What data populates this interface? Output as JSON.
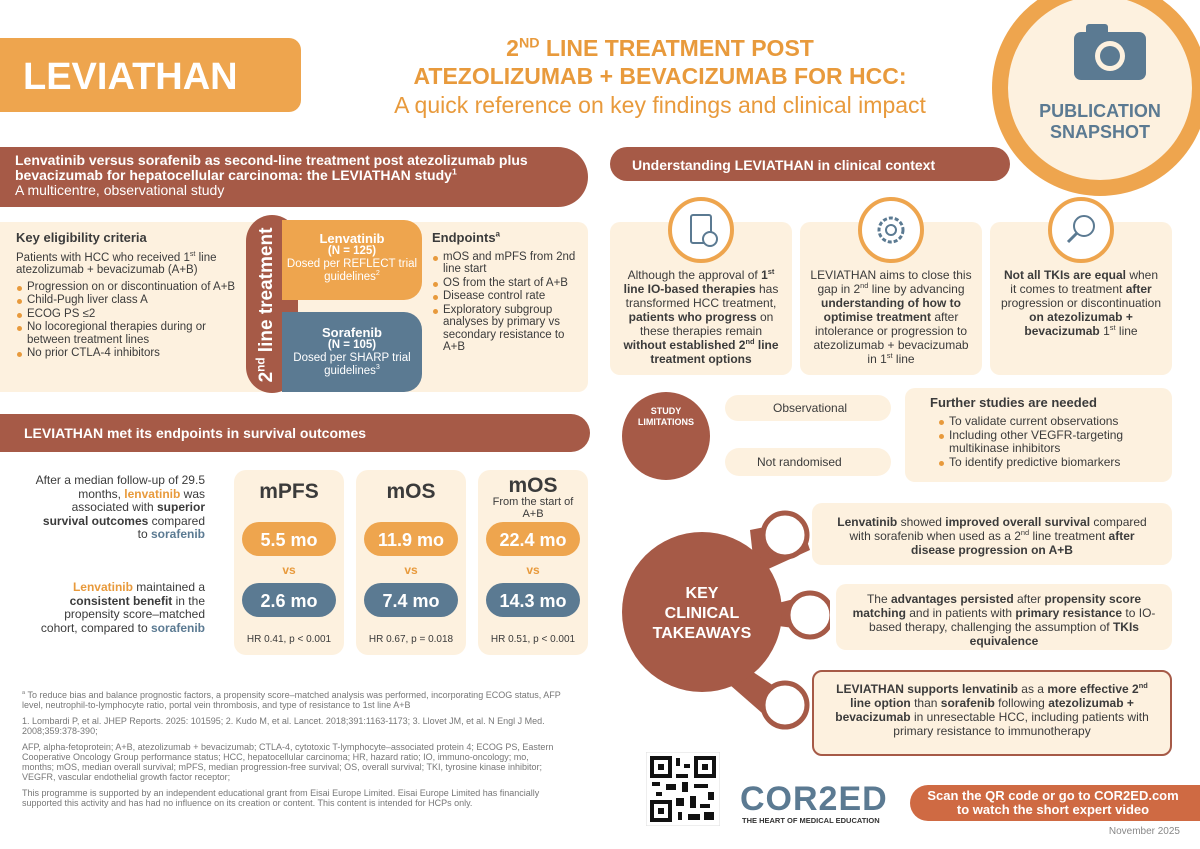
{
  "header": {
    "badge": "LEVIATHAN",
    "title": [
      "2",
      "ND",
      " LINE TREATMENT POST",
      "ATEZOLIZUMAB + BEVACIZUMAB FOR HCC:"
    ],
    "subtitle": "A quick reference on key findings and clinical impact",
    "snapshot": [
      "PUBLICATION",
      "SNAPSHOT"
    ]
  },
  "study": {
    "heading": [
      "Lenvatinib versus sorafenib as second-line treatment post atezolizumab plus bevacizumab for hepatocellular carcinoma: the LEVIATHAN study",
      "1"
    ],
    "subheading": "A multicentre, observational study"
  },
  "eligibility": {
    "title": "Key eligibility criteria",
    "intro": [
      "Patients with HCC who received 1",
      "st",
      " line atezolizumab + bevacizumab (A+B)"
    ],
    "items": [
      "Progression on or discontinuation of A+B",
      "Child-Pugh liver class A",
      "ECOG PS ≤2",
      "No locoregional therapies during or between treatment lines",
      "No prior CTLA-4 inhibitors"
    ]
  },
  "arms": {
    "label": [
      "2",
      "nd",
      " line treatment"
    ],
    "groups": [
      {
        "name": "Lenvatinib",
        "n": "(N = 125)",
        "dosing": [
          "Dosed per REFLECT trial guidelines",
          "2"
        ]
      },
      {
        "name": "Sorafenib",
        "n": "(N = 105)",
        "dosing": [
          "Dosed per SHARP trial guidelines",
          "3"
        ]
      }
    ]
  },
  "endpoints": {
    "title": [
      "Endpoints",
      "a"
    ],
    "items": [
      "mOS and mPFS from 2nd line start",
      "OS from the start of A+B",
      "Disease control rate",
      "Exploratory subgroup analyses by primary vs secondary resistance to A+B"
    ]
  },
  "outcomes": {
    "heading": "LEVIATHAN met its endpoints in survival outcomes",
    "text1": [
      "After a median follow-up of 29.5 months, ",
      "lenvatinib",
      " was associated with ",
      "superior survival outcomes",
      " compared to ",
      "sorafenib"
    ],
    "text2": [
      "Lenvatinib",
      " maintained a ",
      "consistent benefit",
      " in the propensity score–matched cohort, compared to ",
      "sorafenib"
    ],
    "columns": [
      {
        "title": "mPFS",
        "lenvatinib": "5.5 mo",
        "vs": "vs",
        "sorafenib": "2.6 mo",
        "hr": "HR 0.41, p < 0.001"
      },
      {
        "title": "mOS",
        "lenvatinib": "11.9 mo",
        "vs": "vs",
        "sorafenib": "7.4 mo",
        "hr": "HR 0.67, p = 0.018"
      },
      {
        "title": "mOS",
        "subtitle": "From the start of A+B",
        "lenvatinib": "22.4 mo",
        "vs": "vs",
        "sorafenib": "14.3 mo",
        "hr": "HR 0.51, p < 0.001"
      }
    ]
  },
  "footnotes": [
    [
      "a",
      " To reduce bias and balance prognostic factors, a propensity score–matched analysis was performed, incorporating ECOG status, AFP level, neutrophil-to-lymphocyte ratio, portal vein thrombosis, and type of resistance to 1st line A+B"
    ],
    "1. Lombardi P, et al. JHEP Reports. 2025: 101595; 2. Kudo M, et al. Lancet. 2018;391:1163-1173; 3. Llovet JM, et al. N Engl J Med. 2008;359:378-390;",
    "AFP, alpha-fetoprotein; A+B, atezolizumab + bevacizumab; CTLA-4, cytotoxic T-lymphocyte–associated protein 4; ECOG PS, Eastern Cooperative Oncology Group performance status; HCC, hepatocellular carcinoma; HR, hazard ratio; IO, immuno-oncology; mo, months; mOS, median overall survival; mPFS, median progression-free survival; OS, overall survival; TKI, tyrosine kinase inhibitor; VEGFR, vascular endothelial growth factor receptor;",
    "This programme is supported by an independent educational grant from Eisai Europe Limited. Eisai Europe Limited has financially supported this activity and has had no influence on its creation or content. This content is intended for HCPs only."
  ],
  "context": {
    "heading": "Understanding LEVIATHAN in clinical context",
    "cards": [
      [
        "Although the approval of ",
        "1",
        "st",
        " line IO-based therapies",
        " has transformed HCC treatment, ",
        "patients who progress",
        " on these therapies remain ",
        "without established 2",
        "nd",
        " line treatment options"
      ],
      [
        "LEVIATHAN aims to close this gap in 2",
        "nd",
        " line by advancing ",
        "understanding of how to optimise treatment",
        " after intolerance or progression to atezolizumab + bevacizumab in 1",
        "st",
        " line"
      ],
      [
        "Not all TKIs are equal",
        " when it comes to treatment ",
        "after",
        " progression or discontinuation ",
        "on atezolizumab + bevacizumab",
        " 1",
        "st",
        " line"
      ]
    ]
  },
  "limitations": {
    "label": [
      "STUDY",
      "LIMITATIONS"
    ],
    "items": [
      "Observational",
      "Not randomised"
    ]
  },
  "further": {
    "title": "Further studies are needed",
    "items": [
      "To validate current observations",
      "Including other VEGFR-targeting multikinase inhibitors",
      "To identify predictive biomarkers"
    ]
  },
  "takeaways": {
    "label": [
      "KEY",
      "CLINICAL",
      "TAKEAWAYS"
    ],
    "items": [
      [
        "Lenvatinib",
        " showed ",
        "improved overall survival",
        " compared with sorafenib when used as a 2",
        "nd",
        " line treatment ",
        "after disease progression on A+B"
      ],
      [
        "The ",
        "advantages persisted",
        " after ",
        "propensity score matching",
        " and in patients with ",
        "primary resistance",
        " to IO-based therapy, challenging the assumption of ",
        "TKIs equivalence"
      ],
      [
        "LEVIATHAN supports ",
        "lenvatinib",
        " as a ",
        "more effective 2",
        "nd",
        " line option",
        " than ",
        "sorafenib",
        " following ",
        "atezolizumab + bevacizumab",
        " in unresectable HCC, including patients with primary resistance to immunotherapy"
      ]
    ]
  },
  "footer": {
    "logo": "COR2ED",
    "tagline": "THE HEART OF MEDICAL EDUCATION",
    "cta": [
      "Scan the QR code or go to COR2ED.com",
      "to watch the short expert video"
    ],
    "date": "November 2025"
  }
}
